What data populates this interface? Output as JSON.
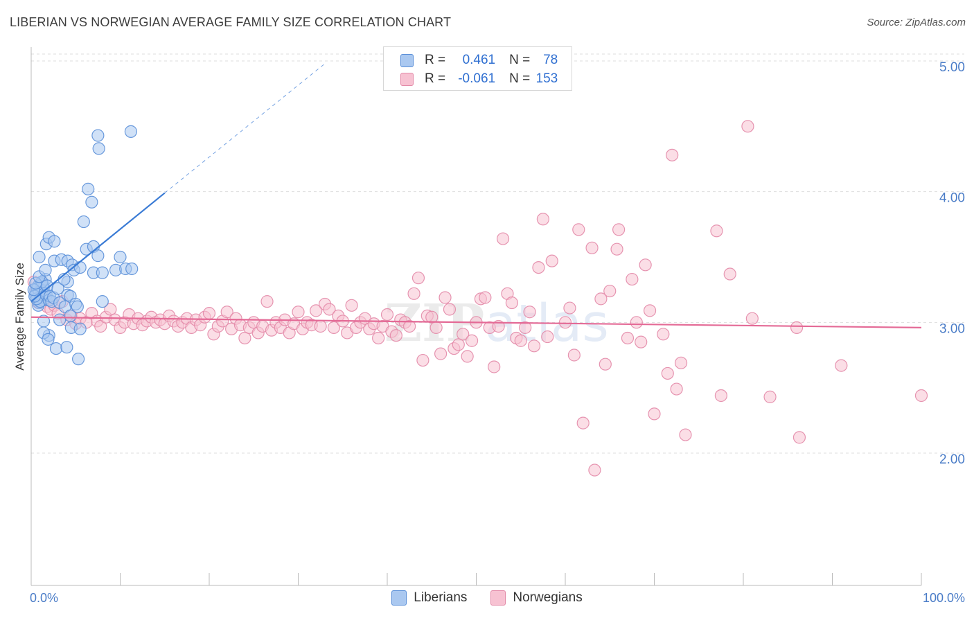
{
  "title": "LIBERIAN VS NORWEGIAN AVERAGE FAMILY SIZE CORRELATION CHART",
  "source": "Source: ZipAtlas.com",
  "watermark": "ZIPatlas",
  "legend_top": {
    "rows": [
      {
        "r_label": "R =",
        "r_value": "0.461",
        "n_label": "N =",
        "n_value": "78"
      },
      {
        "r_label": "R =",
        "r_value": "-0.061",
        "n_label": "N =",
        "n_value": "153"
      }
    ]
  },
  "legend_bottom": [
    "Liberians",
    "Norwegians"
  ],
  "colors": {
    "liberians_fill": "#aac8f0",
    "liberians_stroke": "#5a8fd8",
    "liberians_line": "#3a7bd5",
    "norwegians_fill": "#f7c2d2",
    "norwegians_stroke": "#e38aa8",
    "norwegians_line": "#e46a96",
    "tick_text": "#4a7cc7",
    "grid": "#dddddd"
  },
  "chart_data": {
    "type": "scatter",
    "title": "LIBERIAN VS NORWEGIAN AVERAGE FAMILY SIZE CORRELATION CHART",
    "xlabel": "",
    "ylabel": "Average Family Size",
    "x_tick_labels": [
      "0.0%",
      "100.0%"
    ],
    "y_tick_labels": [
      "2.00",
      "3.00",
      "4.00",
      "5.00"
    ],
    "xlim": [
      0,
      100
    ],
    "ylim": [
      1.0,
      5.1
    ],
    "y_ticks": [
      2.0,
      3.0,
      4.0,
      5.0
    ],
    "grid": true,
    "legend_position": "bottom",
    "series": [
      {
        "name": "Liberians",
        "r": 0.461,
        "n": 78,
        "trend": {
          "x0": 0,
          "y0": 3.16,
          "x1": 15,
          "y1": 3.99,
          "dash_to_x": 33,
          "dash_to_y": 4.98
        },
        "points": [
          [
            0.5,
            3.25
          ],
          [
            0.6,
            3.22
          ],
          [
            0.7,
            3.18
          ],
          [
            0.8,
            3.28
          ],
          [
            0.9,
            3.15
          ],
          [
            1.0,
            3.2
          ],
          [
            1.1,
            3.3
          ],
          [
            1.2,
            3.24
          ],
          [
            1.3,
            3.17
          ],
          [
            1.4,
            3.27
          ],
          [
            0.5,
            3.21
          ],
          [
            0.7,
            3.26
          ],
          [
            0.9,
            3.23
          ],
          [
            1.1,
            3.19
          ],
          [
            1.3,
            3.29
          ],
          [
            1.5,
            3.22
          ],
          [
            1.6,
            3.33
          ],
          [
            0.8,
            3.13
          ],
          [
            1.0,
            3.16
          ],
          [
            1.2,
            3.31
          ],
          [
            0.6,
            3.18
          ],
          [
            0.4,
            3.2
          ],
          [
            0.3,
            3.25
          ],
          [
            0.5,
            3.3
          ],
          [
            0.9,
            3.35
          ],
          [
            1.7,
            3.21
          ],
          [
            1.8,
            3.28
          ],
          [
            2.0,
            3.17
          ],
          [
            2.1,
            3.2
          ],
          [
            2.3,
            3.16
          ],
          [
            0.9,
            3.5
          ],
          [
            1.6,
            3.4
          ],
          [
            1.7,
            3.6
          ],
          [
            2.0,
            3.65
          ],
          [
            2.6,
            3.62
          ],
          [
            2.6,
            3.47
          ],
          [
            3.4,
            3.48
          ],
          [
            4.1,
            3.47
          ],
          [
            4.6,
            3.44
          ],
          [
            4.8,
            3.4
          ],
          [
            5.5,
            3.42
          ],
          [
            6.2,
            3.56
          ],
          [
            7.0,
            3.58
          ],
          [
            7.5,
            3.51
          ],
          [
            7.0,
            3.38
          ],
          [
            8.0,
            3.38
          ],
          [
            9.5,
            3.4
          ],
          [
            10.0,
            3.5
          ],
          [
            10.6,
            3.41
          ],
          [
            11.3,
            3.41
          ],
          [
            5.9,
            3.77
          ],
          [
            6.4,
            4.02
          ],
          [
            6.8,
            3.92
          ],
          [
            7.5,
            4.43
          ],
          [
            7.6,
            4.33
          ],
          [
            11.2,
            4.46
          ],
          [
            2.5,
            3.19
          ],
          [
            3.2,
            3.15
          ],
          [
            3.8,
            3.12
          ],
          [
            4.1,
            3.31
          ],
          [
            4.1,
            3.21
          ],
          [
            4.4,
            3.2
          ],
          [
            5.0,
            3.14
          ],
          [
            5.2,
            3.12
          ],
          [
            3.0,
            3.26
          ],
          [
            3.7,
            3.33
          ],
          [
            8.0,
            3.16
          ],
          [
            1.4,
            3.01
          ],
          [
            2.0,
            2.9
          ],
          [
            3.2,
            3.02
          ],
          [
            1.4,
            2.92
          ],
          [
            1.9,
            2.87
          ],
          [
            2.8,
            2.8
          ],
          [
            4.0,
            2.81
          ],
          [
            4.5,
            2.96
          ],
          [
            5.5,
            2.95
          ],
          [
            5.3,
            2.72
          ],
          [
            4.4,
            3.05
          ]
        ]
      },
      {
        "name": "Norwegians",
        "r": -0.061,
        "n": 153,
        "trend": {
          "x0": 0,
          "y0": 3.04,
          "x1": 100,
          "y1": 2.96
        },
        "points": [
          [
            0.3,
            3.31
          ],
          [
            0.5,
            3.23
          ],
          [
            0.8,
            3.15
          ],
          [
            1.2,
            3.19
          ],
          [
            1.8,
            3.12
          ],
          [
            2.2,
            3.1
          ],
          [
            2.6,
            3.13
          ],
          [
            3.0,
            3.07
          ],
          [
            3.5,
            3.16
          ],
          [
            4.0,
            3.02
          ],
          [
            4.5,
            3.05
          ],
          [
            5.0,
            2.99
          ],
          [
            5.5,
            3.03
          ],
          [
            6.2,
            3.0
          ],
          [
            6.8,
            3.07
          ],
          [
            7.4,
            3.01
          ],
          [
            7.8,
            2.97
          ],
          [
            8.4,
            3.04
          ],
          [
            8.9,
            3.1
          ],
          [
            9.4,
            3.02
          ],
          [
            10.0,
            2.96
          ],
          [
            10.5,
            3.0
          ],
          [
            11.0,
            3.06
          ],
          [
            11.5,
            2.99
          ],
          [
            12.0,
            3.03
          ],
          [
            12.5,
            2.98
          ],
          [
            13.0,
            3.01
          ],
          [
            13.5,
            3.04
          ],
          [
            14.0,
            3.0
          ],
          [
            14.5,
            3.02
          ],
          [
            15.0,
            2.99
          ],
          [
            15.5,
            3.05
          ],
          [
            16.0,
            3.01
          ],
          [
            16.5,
            2.97
          ],
          [
            17.0,
            3.0
          ],
          [
            17.5,
            3.03
          ],
          [
            18.0,
            2.96
          ],
          [
            18.5,
            3.02
          ],
          [
            19.0,
            2.98
          ],
          [
            19.5,
            3.04
          ],
          [
            20.0,
            3.07
          ],
          [
            20.5,
            2.91
          ],
          [
            21.0,
            2.97
          ],
          [
            21.5,
            3.01
          ],
          [
            22.0,
            3.08
          ],
          [
            22.5,
            2.95
          ],
          [
            23.0,
            3.03
          ],
          [
            23.5,
            2.98
          ],
          [
            24.0,
            2.88
          ],
          [
            24.5,
            2.96
          ],
          [
            25.0,
            3.0
          ],
          [
            25.5,
            2.92
          ],
          [
            26.0,
            2.97
          ],
          [
            26.5,
            3.16
          ],
          [
            27.0,
            2.94
          ],
          [
            27.5,
            3.0
          ],
          [
            28.0,
            2.96
          ],
          [
            28.5,
            3.02
          ],
          [
            29.0,
            2.92
          ],
          [
            29.5,
            2.99
          ],
          [
            30.0,
            3.08
          ],
          [
            30.5,
            2.95
          ],
          [
            31.0,
            3.0
          ],
          [
            31.5,
            2.98
          ],
          [
            32.0,
            3.09
          ],
          [
            32.5,
            2.97
          ],
          [
            33.0,
            3.14
          ],
          [
            33.5,
            3.1
          ],
          [
            34.0,
            2.96
          ],
          [
            34.5,
            3.05
          ],
          [
            35.0,
            3.01
          ],
          [
            35.5,
            2.92
          ],
          [
            36.0,
            3.13
          ],
          [
            36.5,
            2.96
          ],
          [
            37.0,
            3.0
          ],
          [
            37.5,
            3.03
          ],
          [
            38.0,
            2.95
          ],
          [
            38.5,
            2.99
          ],
          [
            39.0,
            2.88
          ],
          [
            39.5,
            2.97
          ],
          [
            40.0,
            3.06
          ],
          [
            40.5,
            2.93
          ],
          [
            41.0,
            2.9
          ],
          [
            41.5,
            3.02
          ],
          [
            42.0,
            3.0
          ],
          [
            42.5,
            2.97
          ],
          [
            43.0,
            3.22
          ],
          [
            43.5,
            3.34
          ],
          [
            44.0,
            2.71
          ],
          [
            44.5,
            3.05
          ],
          [
            45.0,
            3.04
          ],
          [
            45.5,
            2.96
          ],
          [
            46.0,
            2.76
          ],
          [
            46.5,
            3.19
          ],
          [
            47.0,
            3.1
          ],
          [
            47.5,
            2.8
          ],
          [
            48.0,
            2.83
          ],
          [
            48.5,
            2.91
          ],
          [
            49.0,
            2.74
          ],
          [
            49.5,
            2.86
          ],
          [
            50.0,
            3.0
          ],
          [
            50.5,
            3.18
          ],
          [
            51.0,
            3.19
          ],
          [
            51.5,
            2.96
          ],
          [
            52.0,
            2.66
          ],
          [
            52.5,
            2.97
          ],
          [
            53.0,
            3.64
          ],
          [
            53.5,
            3.22
          ],
          [
            54.0,
            3.15
          ],
          [
            54.5,
            2.88
          ],
          [
            55.0,
            2.86
          ],
          [
            55.5,
            2.96
          ],
          [
            56.0,
            3.08
          ],
          [
            56.5,
            2.82
          ],
          [
            57.0,
            3.42
          ],
          [
            57.5,
            3.79
          ],
          [
            58.0,
            2.89
          ],
          [
            58.5,
            3.47
          ],
          [
            60.0,
            3.0
          ],
          [
            60.5,
            3.11
          ],
          [
            61.0,
            2.75
          ],
          [
            61.5,
            3.71
          ],
          [
            62.0,
            2.23
          ],
          [
            63.0,
            3.57
          ],
          [
            63.3,
            1.87
          ],
          [
            64.0,
            3.18
          ],
          [
            64.5,
            2.68
          ],
          [
            65.0,
            3.24
          ],
          [
            65.8,
            3.56
          ],
          [
            66.0,
            3.71
          ],
          [
            67.0,
            2.88
          ],
          [
            67.5,
            3.33
          ],
          [
            68.0,
            3.0
          ],
          [
            68.5,
            2.85
          ],
          [
            69.0,
            3.44
          ],
          [
            69.5,
            3.09
          ],
          [
            70.0,
            2.3
          ],
          [
            71.0,
            2.91
          ],
          [
            71.5,
            2.61
          ],
          [
            72.0,
            4.28
          ],
          [
            72.5,
            2.49
          ],
          [
            73.0,
            2.69
          ],
          [
            73.5,
            2.14
          ],
          [
            77.0,
            3.7
          ],
          [
            77.5,
            2.44
          ],
          [
            78.5,
            3.37
          ],
          [
            80.5,
            4.5
          ],
          [
            81.0,
            3.03
          ],
          [
            83.0,
            2.43
          ],
          [
            86.0,
            2.96
          ],
          [
            86.3,
            2.12
          ],
          [
            91.0,
            2.67
          ],
          [
            100.0,
            2.44
          ]
        ]
      }
    ]
  }
}
